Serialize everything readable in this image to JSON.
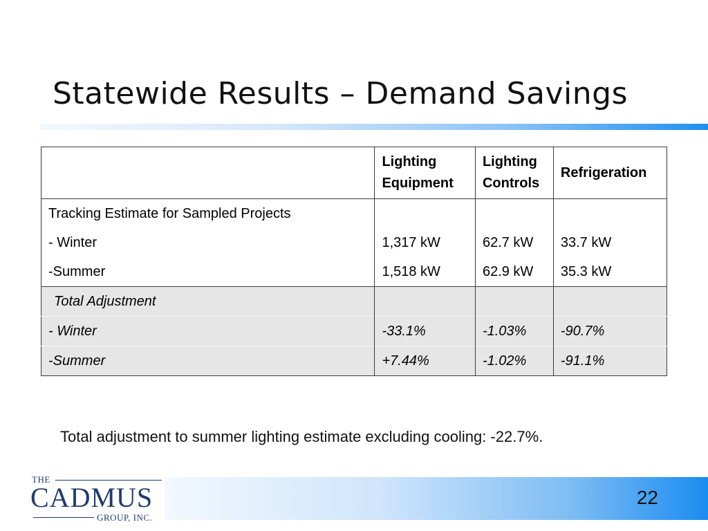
{
  "slide": {
    "title": "Statewide Results – Demand Savings",
    "page_number": "22"
  },
  "table": {
    "headers": [
      "",
      "Lighting Equipment",
      "Lighting Controls",
      "Refrigeration"
    ],
    "header_lines": {
      "lighting_equipment": [
        "Lighting",
        "Equipment"
      ],
      "lighting_controls": [
        "Lighting",
        "Controls"
      ]
    },
    "sections": [
      {
        "label": "Tracking Estimate for Sampled Projects",
        "rows": [
          {
            "label": "- Winter",
            "values": [
              "1,317 kW",
              "62.7 kW",
              "33.7 kW"
            ]
          },
          {
            "label": "-Summer",
            "values": [
              "1,518 kW",
              "62.9 kW",
              "35.3 kW"
            ]
          }
        ]
      },
      {
        "label": "Total Adjustment",
        "rows": [
          {
            "label": "- Winter",
            "values": [
              "-33.1%",
              "-1.03%",
              "-90.7%"
            ]
          },
          {
            "label": "-Summer",
            "values": [
              "+7.44%",
              "-1.02%",
              "-91.1%"
            ]
          }
        ]
      }
    ]
  },
  "footnote": "Total adjustment to summer lighting estimate excluding cooling: -22.7%.",
  "logo": {
    "top": "THE",
    "main": "CADMUS",
    "sub": "GROUP, INC."
  },
  "colors": {
    "shaded_row": "#e6e6e6",
    "accent_blue": "#1a8cf0",
    "logo_navy": "#1f3a6e"
  }
}
